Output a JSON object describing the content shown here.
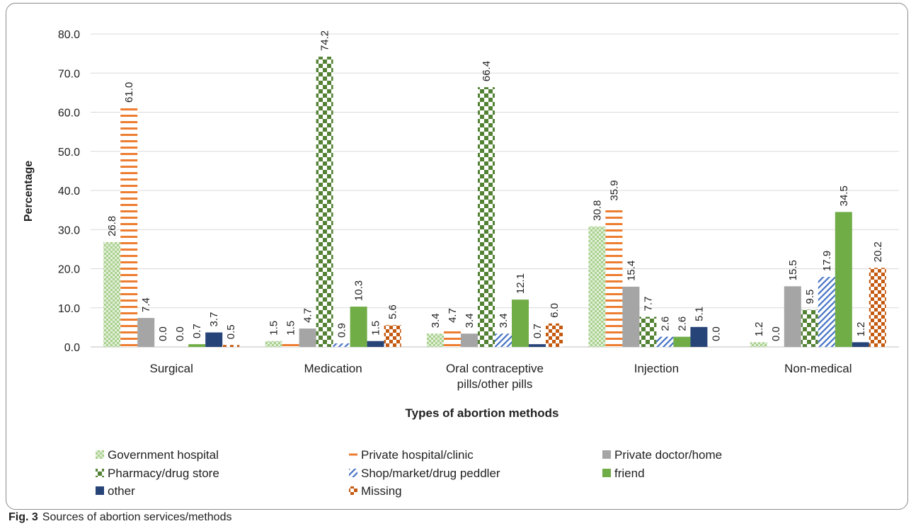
{
  "chart_data": {
    "type": "bar",
    "title": "",
    "xlabel": "Types of abortion methods",
    "ylabel": "Percentage",
    "ylim": [
      0,
      80
    ],
    "yticks": [
      "0.0",
      "10.0",
      "20.0",
      "30.0",
      "40.0",
      "50.0",
      "60.0",
      "70.0",
      "80.0"
    ],
    "grid": true,
    "legend_position": "bottom",
    "categories": [
      [
        "Surgical"
      ],
      [
        "Medication"
      ],
      [
        "Oral contraceptive",
        "pills/other pills"
      ],
      [
        "Injection"
      ],
      [
        "Non-medical"
      ]
    ],
    "series": [
      {
        "name": "Government hospital",
        "color": "#a9d18e",
        "pattern": "dots",
        "values": [
          26.8,
          1.5,
          3.4,
          30.8,
          1.2
        ],
        "labels": [
          "26.8",
          "1.5",
          "3.4",
          "30.8",
          "1.2"
        ]
      },
      {
        "name": "Private hospital/clinic",
        "color": "#ed7d31",
        "pattern": "hlines",
        "values": [
          61.0,
          1.5,
          4.7,
          35.9,
          0.0
        ],
        "labels": [
          "61.0",
          "1.5",
          "4.7",
          "35.9",
          "0.0"
        ]
      },
      {
        "name": "Private doctor/home",
        "color": "#a5a5a5",
        "pattern": "solid",
        "values": [
          7.4,
          4.7,
          3.4,
          15.4,
          15.5
        ],
        "labels": [
          "7.4",
          "4.7",
          "3.4",
          "15.4",
          "15.5"
        ]
      },
      {
        "name": "Pharmacy/drug store",
        "color": "#548235",
        "pattern": "checker",
        "values": [
          0.0,
          74.2,
          66.4,
          7.7,
          9.5
        ],
        "labels": [
          "0.0",
          "74.2",
          "66.4",
          "7.7",
          "9.5"
        ]
      },
      {
        "name": "Shop/market/drug peddler",
        "color": "#4472c4",
        "pattern": "diagonal",
        "values": [
          0.0,
          0.9,
          3.4,
          2.6,
          17.9
        ],
        "labels": [
          "0.0",
          "0.9",
          "3.4",
          "2.6",
          "17.9"
        ]
      },
      {
        "name": "friend",
        "color": "#70ad47",
        "pattern": "solid",
        "values": [
          0.7,
          10.3,
          12.1,
          2.6,
          34.5
        ],
        "labels": [
          "0.7",
          "10.3",
          "12.1",
          "2.6",
          "34.5"
        ]
      },
      {
        "name": "other",
        "color": "#264478",
        "pattern": "solid",
        "values": [
          3.7,
          1.5,
          0.7,
          5.1,
          1.2
        ],
        "labels": [
          "3.7",
          "1.5",
          "0.7",
          "5.1",
          "1.2"
        ]
      },
      {
        "name": "Missing",
        "color": "#c55a11",
        "pattern": "bigchecker",
        "values": [
          0.5,
          5.6,
          6.0,
          0.0,
          20.2
        ],
        "labels": [
          "0.5",
          "5.6",
          "6.0",
          "0.0",
          "20.2"
        ]
      }
    ]
  },
  "caption": {
    "label": "Fig. 3",
    "text": "Sources of abortion services/methods"
  }
}
